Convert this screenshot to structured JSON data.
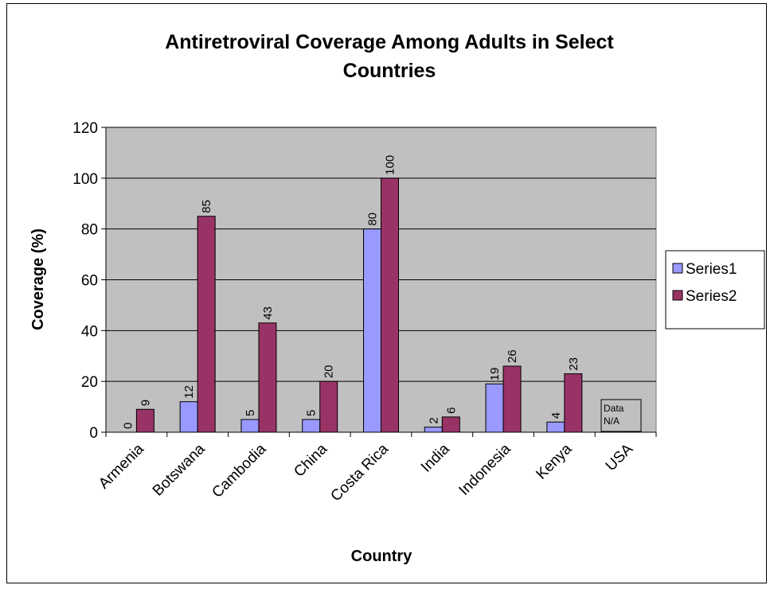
{
  "chart_data": {
    "type": "bar",
    "title_line1": "Antiretroviral Coverage Among Adults in Select",
    "title_line2": "Countries",
    "xlabel": "Country",
    "ylabel": "Coverage (%)",
    "ylim": [
      0,
      120
    ],
    "yticks": [
      "0",
      "20",
      "40",
      "60",
      "80",
      "100",
      "120"
    ],
    "grid": true,
    "legend_position": "right",
    "plot_background": "#C0C0C0",
    "categories": [
      "Armenia",
      "Botswana",
      "Cambodia",
      "China",
      "Costa Rica",
      "India",
      "Indonesia",
      "Kenya",
      "USA"
    ],
    "series": [
      {
        "name": "Series1",
        "color": "#9999FF",
        "values": [
          0,
          12,
          5,
          5,
          80,
          2,
          19,
          4,
          null
        ],
        "labels": [
          "0",
          "12",
          "5",
          "5",
          "80",
          "2",
          "19",
          "4",
          ""
        ]
      },
      {
        "name": "Series2",
        "color": "#993366",
        "values": [
          9,
          85,
          43,
          20,
          100,
          6,
          26,
          23,
          null
        ],
        "labels": [
          "9",
          "85",
          "43",
          "20",
          "100",
          "6",
          "26",
          "23",
          ""
        ]
      }
    ],
    "annotations": [
      {
        "category": "USA",
        "line1": "Data",
        "line2": "N/A"
      }
    ]
  }
}
